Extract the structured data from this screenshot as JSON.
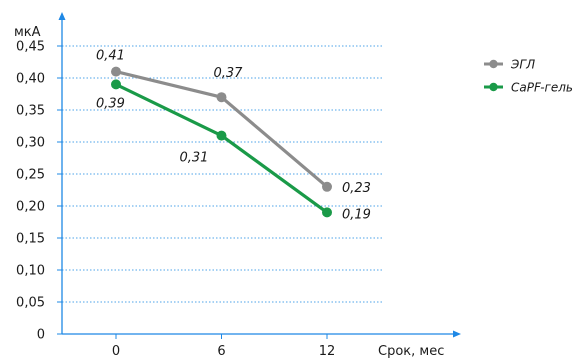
{
  "chart_data": {
    "type": "line",
    "title": "",
    "ylabel": "мкА",
    "xlabel": "Срок, мес",
    "x": [
      0,
      6,
      12
    ],
    "x_tick_labels": [
      "0",
      "6",
      "12"
    ],
    "ylim": [
      0,
      0.45
    ],
    "y_ticks": [
      0,
      0.05,
      0.1,
      0.15,
      0.2,
      0.25,
      0.3,
      0.35,
      0.4,
      0.45
    ],
    "y_tick_labels": [
      "0",
      "0,05",
      "0,10",
      "0,15",
      "0,20",
      "0,25",
      "0,30",
      "0,35",
      "0,40",
      "0,45"
    ],
    "grid": "horizontal-dotted",
    "legend_position": "top-right",
    "series": [
      {
        "name": "ЭГЛ",
        "color": "#8c8c8c",
        "values": [
          0.41,
          0.37,
          0.23
        ],
        "data_labels": [
          "0,41",
          "0,37",
          "0,23"
        ]
      },
      {
        "name": "CaPF-гель",
        "color": "#1a9a48",
        "values": [
          0.39,
          0.31,
          0.19
        ],
        "data_labels": [
          "0,39",
          "0,31",
          "0,19"
        ]
      }
    ],
    "axis_color": "#1e88e5",
    "grid_color": "#4da3e8"
  }
}
